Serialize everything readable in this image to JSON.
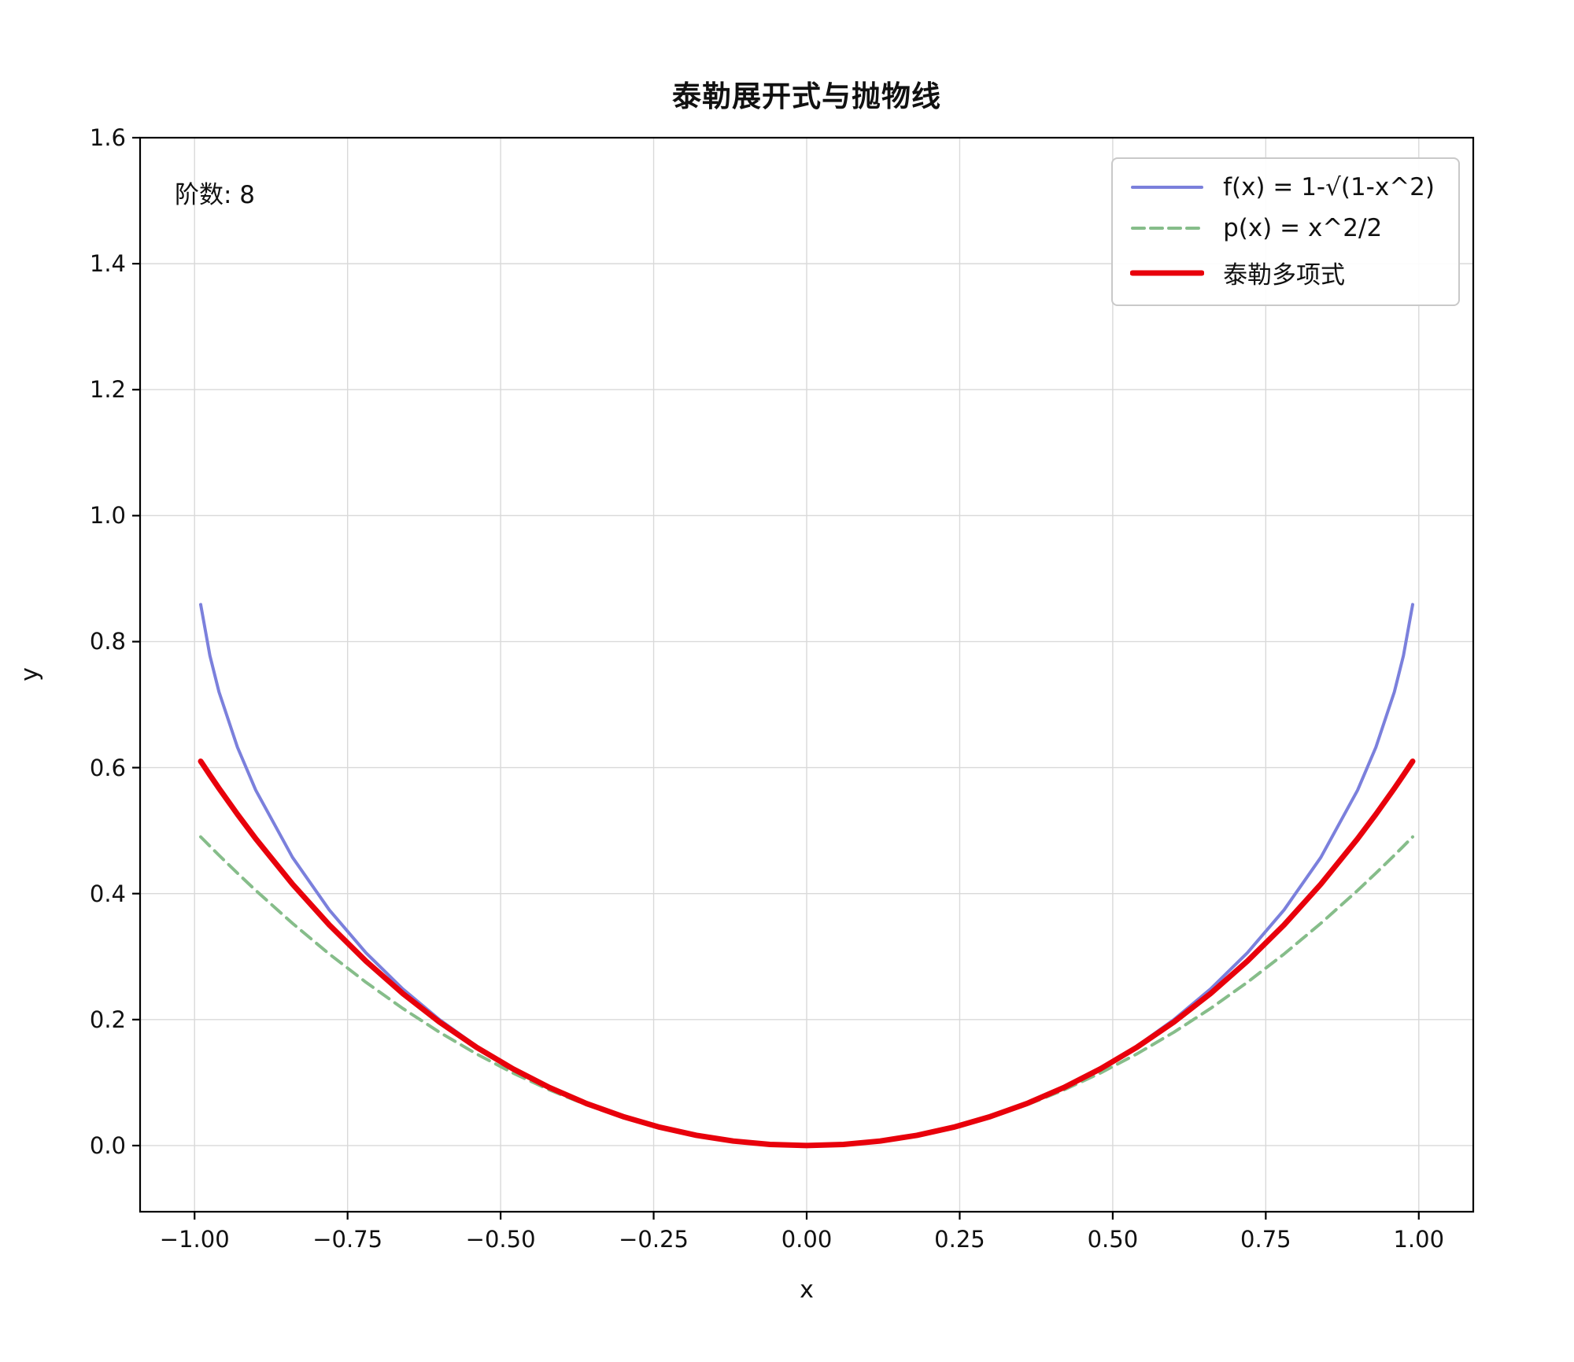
{
  "figure": {
    "title": "泰勒展开式与抛物线",
    "xlabel": "x",
    "ylabel": "y",
    "annotation": "阶数: 8"
  },
  "axes": {
    "xlim": [
      -1.089,
      1.089
    ],
    "ylim": [
      -0.105,
      1.6
    ],
    "grid": true,
    "x_ticks": [
      {
        "value": -1.0,
        "label": "−1.00"
      },
      {
        "value": -0.75,
        "label": "−0.75"
      },
      {
        "value": -0.5,
        "label": "−0.50"
      },
      {
        "value": -0.25,
        "label": "−0.25"
      },
      {
        "value": 0.0,
        "label": "0.00"
      },
      {
        "value": 0.25,
        "label": "0.25"
      },
      {
        "value": 0.5,
        "label": "0.50"
      },
      {
        "value": 0.75,
        "label": "0.75"
      },
      {
        "value": 1.0,
        "label": "1.00"
      }
    ],
    "y_ticks": [
      {
        "value": 0.0,
        "label": "0.0"
      },
      {
        "value": 0.2,
        "label": "0.2"
      },
      {
        "value": 0.4,
        "label": "0.4"
      },
      {
        "value": 0.6,
        "label": "0.6"
      },
      {
        "value": 0.8,
        "label": "0.8"
      },
      {
        "value": 1.0,
        "label": "1.0"
      },
      {
        "value": 1.2,
        "label": "1.2"
      },
      {
        "value": 1.4,
        "label": "1.4"
      },
      {
        "value": 1.6,
        "label": "1.6"
      }
    ]
  },
  "chart_data": {
    "type": "line",
    "title": "泰勒展开式与抛物线",
    "xlabel": "x",
    "ylabel": "y",
    "legend_position": "upper right",
    "grid": true,
    "annotations": [
      {
        "text": "阶数: 8",
        "position": "upper left"
      }
    ],
    "x": [
      -0.99,
      -0.975,
      -0.96,
      -0.93,
      -0.9,
      -0.84,
      -0.78,
      -0.72,
      -0.66,
      -0.6,
      -0.54,
      -0.48,
      -0.42,
      -0.36,
      -0.3,
      -0.24,
      -0.18,
      -0.12,
      -0.06,
      0,
      0.06,
      0.12,
      0.18,
      0.24,
      0.3,
      0.36,
      0.42,
      0.48,
      0.54,
      0.6,
      0.66,
      0.72,
      0.78,
      0.84,
      0.9,
      0.93,
      0.96,
      0.975,
      0.99
    ],
    "series": [
      {
        "key": "f",
        "name": "f(x) = 1-√(1-x^2)",
        "color": "#7b80dc",
        "style": "solid",
        "width": 4,
        "values": [
          0.85893,
          0.7778,
          0.72,
          0.63244,
          0.56411,
          0.45741,
          0.37422,
          0.30603,
          0.24873,
          0.2,
          0.15834,
          0.12273,
          0.09248,
          0.06705,
          0.04606,
          0.02923,
          0.01633,
          0.00723,
          0.0018,
          0,
          0.0018,
          0.00723,
          0.01633,
          0.02923,
          0.04606,
          0.06705,
          0.09248,
          0.12273,
          0.15834,
          0.2,
          0.24873,
          0.30603,
          0.37422,
          0.45741,
          0.56411,
          0.63244,
          0.72,
          0.7778,
          0.85893
        ]
      },
      {
        "key": "p",
        "name": "p(x) = x^2/2",
        "color": "#86bd8a",
        "style": "dashed",
        "width": 4,
        "values": [
          0.49005,
          0.47531,
          0.4608,
          0.43245,
          0.405,
          0.3528,
          0.3042,
          0.2592,
          0.2178,
          0.18,
          0.1458,
          0.1152,
          0.0882,
          0.0648,
          0.045,
          0.0288,
          0.0162,
          0.0072,
          0.0018,
          0,
          0.0018,
          0.0072,
          0.0162,
          0.0288,
          0.045,
          0.0648,
          0.0882,
          0.1152,
          0.1458,
          0.18,
          0.2178,
          0.2592,
          0.3042,
          0.3528,
          0.405,
          0.43245,
          0.4608,
          0.47531,
          0.49005
        ]
      },
      {
        "key": "taylor",
        "name": "泰勒多项式",
        "color": "#e8000b",
        "style": "solid",
        "width": 7,
        "values": [
          0.61012,
          0.58827,
          0.56697,
          0.52596,
          0.48701,
          0.41503,
          0.35047,
          0.29279,
          0.24152,
          0.1962,
          0.15643,
          0.12184,
          0.09209,
          0.0669,
          0.04601,
          0.02921,
          0.01633,
          0.00723,
          0.0018,
          0,
          0.0018,
          0.00723,
          0.01633,
          0.02921,
          0.04601,
          0.0669,
          0.09209,
          0.12184,
          0.15643,
          0.1962,
          0.24152,
          0.29279,
          0.35047,
          0.41503,
          0.48701,
          0.52596,
          0.56697,
          0.58827,
          0.61012
        ]
      }
    ]
  },
  "style": {
    "grid_color": "#d9d9d9",
    "spine_color": "#000000",
    "text_color": "#111111",
    "background": "#ffffff"
  }
}
